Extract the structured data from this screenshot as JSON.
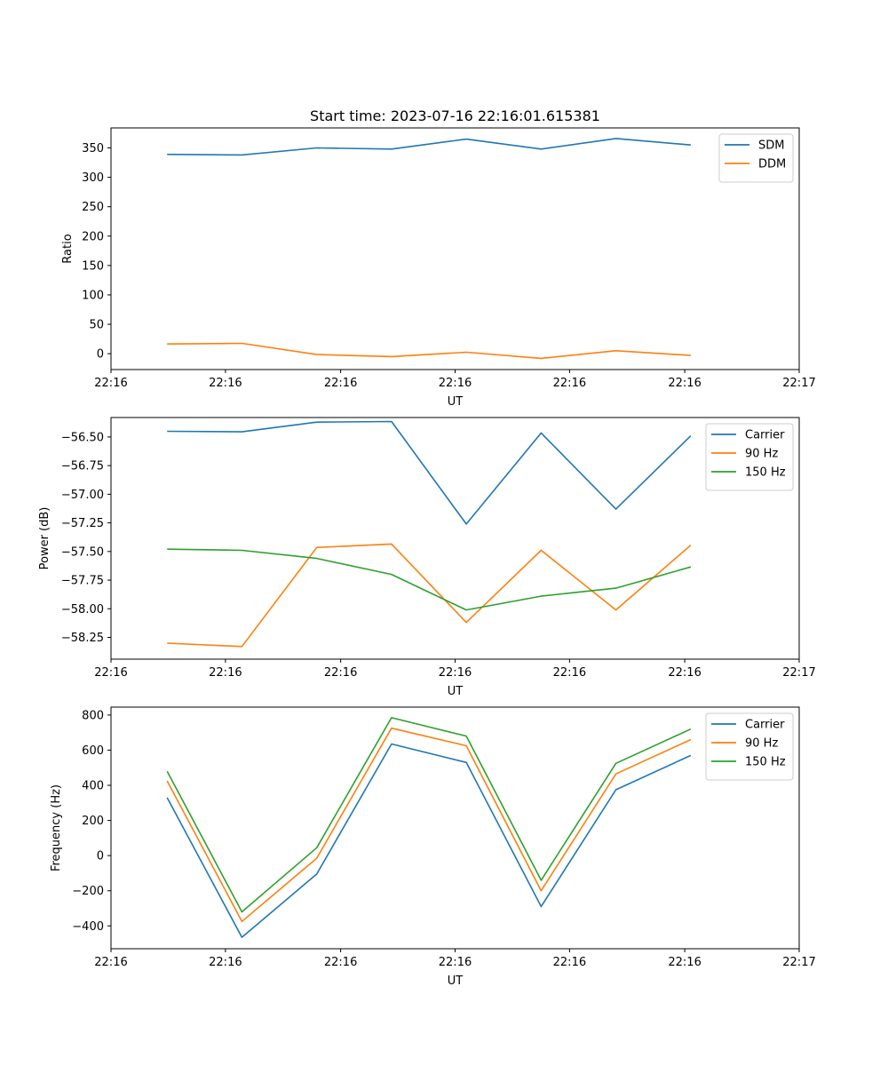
{
  "figure": {
    "title": "Start time: 2023-07-16 22:16:01.615381"
  },
  "chart_data": [
    {
      "type": "line",
      "title": "Start time: 2023-07-16 22:16:01.615381",
      "xlabel": "UT",
      "ylabel": "Ratio",
      "x_index": [
        0,
        1,
        2,
        3,
        4,
        5,
        6,
        7
      ],
      "xlim": [
        -0.75,
        8.45
      ],
      "x_ticks": [
        -0.75,
        0.78,
        2.32,
        3.85,
        5.38,
        6.92,
        8.45
      ],
      "x_tick_labels": [
        "22:16",
        "22:16",
        "22:16",
        "22:16",
        "22:16",
        "22:16",
        "22:17"
      ],
      "ylim": [
        -27,
        384
      ],
      "y_ticks": [
        0,
        50,
        100,
        150,
        200,
        250,
        300,
        350
      ],
      "y_tick_labels": [
        "0",
        "50",
        "100",
        "150",
        "200",
        "250",
        "300",
        "350"
      ],
      "legend_position": "top-right",
      "series": [
        {
          "name": "SDM",
          "color": "#1f77b4",
          "values": [
            339,
            338,
            350,
            348,
            365,
            348,
            366,
            355
          ]
        },
        {
          "name": "DDM",
          "color": "#ff7f0e",
          "values": [
            16.5,
            17.5,
            -1.5,
            -5,
            2.5,
            -8,
            5,
            -3
          ]
        }
      ]
    },
    {
      "type": "line",
      "xlabel": "UT",
      "ylabel": "Power (dB)",
      "x_index": [
        0,
        1,
        2,
        3,
        4,
        5,
        6,
        7
      ],
      "xlim": [
        -0.75,
        8.45
      ],
      "x_ticks": [
        -0.75,
        0.78,
        2.32,
        3.85,
        5.38,
        6.92,
        8.45
      ],
      "x_tick_labels": [
        "22:16",
        "22:16",
        "22:16",
        "22:16",
        "22:16",
        "22:16",
        "22:17"
      ],
      "ylim": [
        -58.44,
        -56.33
      ],
      "y_ticks": [
        -58.25,
        -58.0,
        -57.75,
        -57.5,
        -57.25,
        -57.0,
        -56.75,
        -56.5
      ],
      "y_tick_labels": [
        "−58.25",
        "−58.00",
        "−57.75",
        "−57.50",
        "−57.25",
        "−57.00",
        "−56.75",
        "−56.50"
      ],
      "legend_position": "top-right",
      "series": [
        {
          "name": "Carrier",
          "color": "#1f77b4",
          "values": [
            -56.45,
            -56.455,
            -56.37,
            -56.365,
            -57.26,
            -56.465,
            -57.13,
            -56.49
          ]
        },
        {
          "name": "90 Hz",
          "color": "#ff7f0e",
          "values": [
            -58.3,
            -58.33,
            -57.465,
            -57.435,
            -58.12,
            -57.49,
            -58.01,
            -57.445
          ]
        },
        {
          "name": "150 Hz",
          "color": "#2ca02c",
          "values": [
            -57.48,
            -57.49,
            -57.56,
            -57.7,
            -58.01,
            -57.89,
            -57.82,
            -57.635
          ]
        }
      ]
    },
    {
      "type": "line",
      "xlabel": "UT",
      "ylabel": "Frequency (Hz)",
      "x_index": [
        0,
        1,
        2,
        3,
        4,
        5,
        6,
        7
      ],
      "xlim": [
        -0.75,
        8.45
      ],
      "x_ticks": [
        -0.75,
        0.78,
        2.32,
        3.85,
        5.38,
        6.92,
        8.45
      ],
      "x_tick_labels": [
        "22:16",
        "22:16",
        "22:16",
        "22:16",
        "22:16",
        "22:16",
        "22:17"
      ],
      "ylim": [
        -530,
        845
      ],
      "y_ticks": [
        -400,
        -200,
        0,
        200,
        400,
        600,
        800
      ],
      "y_tick_labels": [
        "−400",
        "−200",
        "0",
        "200",
        "400",
        "600",
        "800"
      ],
      "legend_position": "top-right",
      "series": [
        {
          "name": "Carrier",
          "color": "#1f77b4",
          "values": [
            330,
            -465,
            -105,
            635,
            530,
            -290,
            375,
            570
          ]
        },
        {
          "name": "90 Hz",
          "color": "#ff7f0e",
          "values": [
            425,
            -375,
            -15,
            725,
            625,
            -200,
            465,
            660
          ]
        },
        {
          "name": "150 Hz",
          "color": "#2ca02c",
          "values": [
            480,
            -320,
            45,
            785,
            680,
            -140,
            525,
            720
          ]
        }
      ]
    }
  ]
}
